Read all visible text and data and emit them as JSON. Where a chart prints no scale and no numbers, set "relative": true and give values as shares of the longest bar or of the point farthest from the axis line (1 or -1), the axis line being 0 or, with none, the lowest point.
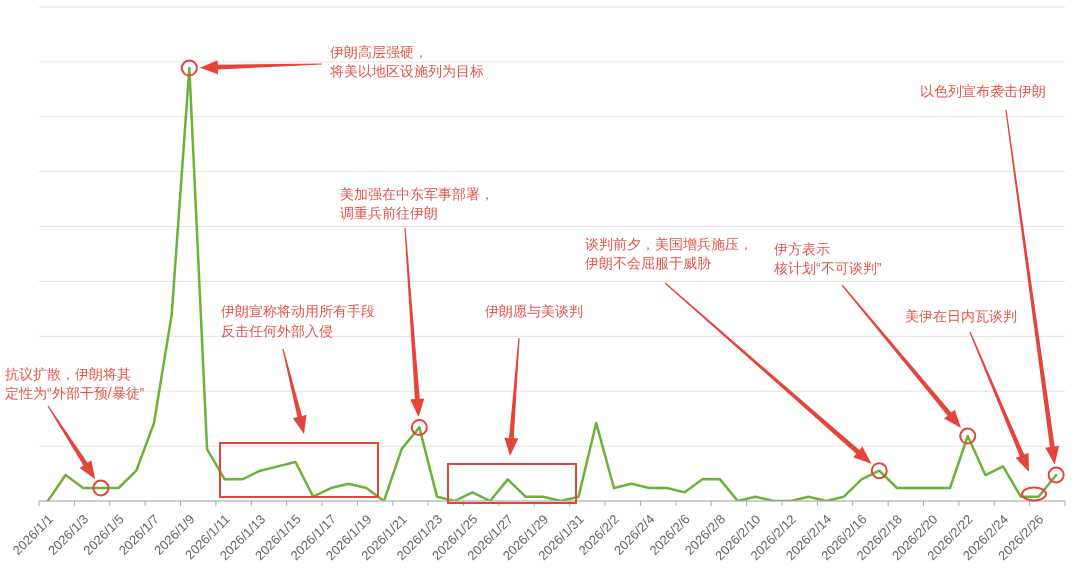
{
  "chart_data": {
    "type": "line",
    "relative": true,
    "grid": "y",
    "color": "#6ab23a",
    "categories": [
      "2026/1/1",
      null,
      "2026/1/3",
      null,
      "2026/1/5",
      null,
      "2026/1/7",
      null,
      "2026/1/9",
      null,
      "2026/1/11",
      null,
      "2026/1/13",
      null,
      "2026/1/15",
      null,
      "2026/1/17",
      null,
      "2026/1/19",
      null,
      "2026/1/21",
      null,
      "2026/1/23",
      null,
      "2026/1/25",
      null,
      "2026/1/27",
      null,
      "2026/1/29",
      null,
      "2026/1/31",
      null,
      "2026/2/2",
      null,
      "2026/2/4",
      null,
      "2026/2/6",
      null,
      "2026/2/8",
      null,
      "2026/2/10",
      null,
      "2026/2/12",
      null,
      "2026/2/14",
      null,
      "2026/2/16",
      null,
      "2026/2/18",
      null,
      "2026/2/20",
      null,
      "2026/2/22",
      null,
      "2026/2/24",
      null,
      "2026/2/26",
      null
    ],
    "values": [
      0,
      0.06,
      0.03,
      0.03,
      0.03,
      0.07,
      0.18,
      0.43,
      1,
      0.12,
      0.05,
      0.05,
      0.07,
      0.08,
      0.09,
      0.01,
      0.03,
      0.04,
      0.03,
      0,
      0.12,
      0.17,
      0.01,
      0,
      0.02,
      0,
      0.05,
      0.01,
      0.01,
      0,
      0.01,
      0.18,
      0.03,
      0.04,
      0.03,
      0.03,
      0.02,
      0.05,
      0.05,
      0,
      0.01,
      0,
      0,
      0.01,
      0,
      0.01,
      0.05,
      0.07,
      0.03,
      0.03,
      0.03,
      0.03,
      0.15,
      0.06,
      0.08,
      0.01,
      0.01,
      0.06
    ],
    "annotations": [
      "抗议扩散，伊朗将其定性为“外部干预/暴徒”",
      "伊朗高层强硬，将美以地区设施列为目标",
      "伊朗宣称将动用所有手段反击任何外部入侵",
      "美加强在中东军事部署，调重兵前往伊朗",
      "伊朗愿与美谈判",
      "谈判前夕，美国增兵施压，伊朗不会屈服于威胁",
      "伊方表示核计划“不可谈判”",
      "美伊在日内瓦谈判",
      "以色列宣布袭击伊朗"
    ]
  }
}
